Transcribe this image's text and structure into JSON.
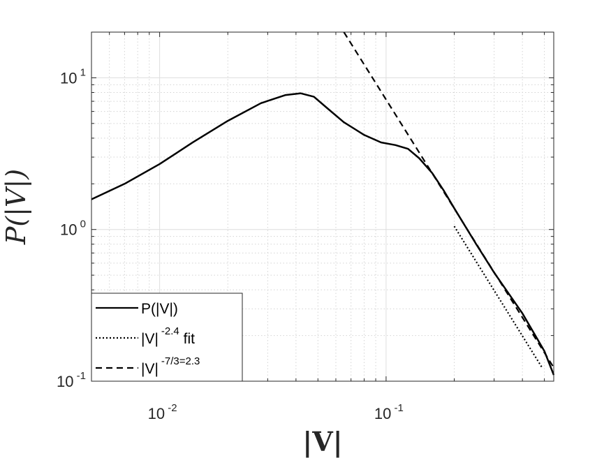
{
  "chart_data": {
    "type": "line",
    "title": "",
    "xlabel": "|V|",
    "ylabel": "P(|V|)",
    "xscale": "log",
    "yscale": "log",
    "xlim": [
      0.005,
      0.55
    ],
    "ylim": [
      0.1,
      20
    ],
    "grid": true,
    "x_ticks": [
      {
        "value": 0.01,
        "base": "10",
        "exp": "-2"
      },
      {
        "value": 0.1,
        "base": "10",
        "exp": "-1"
      }
    ],
    "y_ticks": [
      {
        "value": 0.1,
        "base": "10",
        "exp": "-1"
      },
      {
        "value": 1,
        "base": "10",
        "exp": "0"
      },
      {
        "value": 10,
        "base": "10",
        "exp": "1"
      }
    ],
    "legend_position": "bottom-left",
    "series": [
      {
        "name": "P(|V|)",
        "legend_parts": [
          "P(|V|)"
        ],
        "style": "solid",
        "x": [
          0.005,
          0.007,
          0.01,
          0.014,
          0.02,
          0.028,
          0.036,
          0.042,
          0.048,
          0.055,
          0.065,
          0.08,
          0.095,
          0.11,
          0.125,
          0.14,
          0.16,
          0.18,
          0.2,
          0.25,
          0.3,
          0.4,
          0.5,
          0.55
        ],
        "y": [
          1.58,
          2.0,
          2.7,
          3.75,
          5.2,
          6.8,
          7.7,
          7.9,
          7.5,
          6.3,
          5.1,
          4.2,
          3.75,
          3.6,
          3.4,
          2.95,
          2.35,
          1.8,
          1.38,
          0.8,
          0.52,
          0.28,
          0.158,
          0.11
        ]
      },
      {
        "name": "|V|^-2.4 fit",
        "legend_parts": [
          "|V|",
          "-2.4",
          " fit"
        ],
        "style": "dotted",
        "x": [
          0.2,
          0.49
        ],
        "y": [
          1.05,
          0.122
        ]
      },
      {
        "name": "|V|^-7/3=2.3",
        "legend_parts": [
          "|V|",
          "-7/3=2.3"
        ],
        "style": "dashed",
        "x": [
          0.0651,
          0.55
        ],
        "y": [
          20.0,
          0.123
        ]
      }
    ]
  }
}
